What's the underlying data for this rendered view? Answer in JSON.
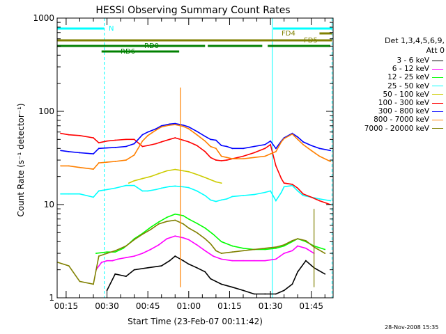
{
  "chart_data": {
    "type": "line",
    "title": "HESSI Observing Summary Count Rates",
    "xlabel": "Start Time (23-Feb-07 00:11:42)",
    "ylabel": "Count Rate (s⁻¹ detector⁻¹)",
    "yscale": "log",
    "ylim": [
      1,
      1000
    ],
    "xlim_minutes": [
      11.7,
      113
    ],
    "x_ticks": [
      "00:15",
      "00:30",
      "00:45",
      "01:00",
      "01:15",
      "01:30",
      "01:45"
    ],
    "y_ticks": [
      "1",
      "10",
      "100",
      "1000"
    ],
    "legend_header": [
      "Det 1,3,4,5,6,9,",
      "Att 0"
    ],
    "grid": false,
    "series": [
      {
        "name": "3 - 6 keV",
        "color": "#000000",
        "x": [
          30,
          33,
          37,
          40,
          45,
          50,
          53,
          55,
          58,
          60,
          63,
          66,
          68,
          72,
          76,
          80,
          84,
          88,
          92,
          95,
          98,
          100,
          103,
          106,
          110
        ],
        "y": [
          1.2,
          1.8,
          1.7,
          2.0,
          2.1,
          2.2,
          2.5,
          2.8,
          2.5,
          2.3,
          2.1,
          1.9,
          1.6,
          1.4,
          1.3,
          1.2,
          1.1,
          1.1,
          1.1,
          1.2,
          1.4,
          1.9,
          2.5,
          2.1,
          1.8
        ]
      },
      {
        "name": "6 - 12 keV",
        "color": "#ff00ff",
        "x": [
          26,
          28,
          30,
          32,
          34,
          37,
          40,
          43,
          46,
          49,
          52,
          55,
          58,
          60,
          63,
          66,
          69,
          72,
          76,
          80,
          84,
          88,
          92,
          95,
          98,
          100,
          103,
          106
        ],
        "y": [
          2.0,
          2.4,
          2.5,
          2.5,
          2.6,
          2.7,
          2.8,
          3.0,
          3.3,
          3.7,
          4.3,
          4.6,
          4.4,
          4.2,
          3.7,
          3.2,
          2.8,
          2.6,
          2.5,
          2.5,
          2.5,
          2.5,
          2.6,
          3.0,
          3.2,
          3.6,
          3.4,
          3.0
        ]
      },
      {
        "name": "12 - 25 keV",
        "color": "#00ff00",
        "x": [
          26,
          30,
          33,
          36,
          38,
          40,
          43,
          46,
          49,
          52,
          55,
          58,
          60,
          63,
          66,
          69,
          72,
          76,
          80,
          84,
          88,
          92,
          95,
          98,
          100,
          103,
          106,
          110
        ],
        "y": [
          3.0,
          3.1,
          3.1,
          3.4,
          3.8,
          4.3,
          4.9,
          5.7,
          6.5,
          7.3,
          7.9,
          7.6,
          7.0,
          6.3,
          5.6,
          4.8,
          4.0,
          3.6,
          3.4,
          3.3,
          3.3,
          3.4,
          3.6,
          4.0,
          4.3,
          4.0,
          3.6,
          3.3
        ]
      },
      {
        "name": "25 - 50 keV",
        "color": "#00ffff",
        "x": [
          13,
          16,
          20,
          25,
          27,
          30,
          33,
          37,
          40,
          43,
          45,
          48,
          50,
          53,
          55,
          58,
          60,
          63,
          66,
          68,
          70,
          72,
          74,
          76,
          80,
          84,
          88,
          90,
          92,
          94,
          95,
          98,
          100,
          102,
          105,
          108,
          112
        ],
        "y": [
          13,
          13,
          13,
          12,
          14,
          14.5,
          15,
          16,
          16,
          14,
          14,
          14.5,
          15,
          15.6,
          15.8,
          15.5,
          15.2,
          14,
          12.5,
          11.2,
          10.8,
          11.2,
          11.5,
          12.2,
          12.5,
          12.8,
          13.5,
          14,
          11,
          13.5,
          15.5,
          16,
          14,
          12.5,
          12,
          11.5,
          11
        ]
      },
      {
        "name": "50 - 100 keV",
        "color": "#cccc00",
        "x": [
          38,
          40,
          43,
          46,
          49,
          52,
          55,
          58,
          60,
          63,
          66,
          68,
          70,
          72
        ],
        "y": [
          17,
          18,
          19,
          20,
          21.5,
          23,
          23.8,
          23,
          22.5,
          21,
          19.5,
          18.5,
          17.5,
          17
        ]
      },
      {
        "name": "100 - 300 keV",
        "color": "#ff0000",
        "x": [
          13,
          16,
          20,
          25,
          27,
          30,
          33,
          37,
          40,
          43,
          45,
          48,
          50,
          53,
          55,
          58,
          60,
          63,
          66,
          68,
          70,
          72,
          74,
          76,
          80,
          84,
          88,
          90,
          92,
          94,
          95,
          98,
          100,
          102,
          105,
          108,
          112
        ],
        "y": [
          58,
          56,
          55,
          52,
          46,
          48,
          49,
          50,
          50,
          42,
          43,
          45,
          47,
          50,
          52,
          49,
          47,
          43,
          37,
          32,
          30,
          29.5,
          30,
          31,
          33,
          36,
          40,
          44,
          26,
          19,
          17,
          16.5,
          15,
          13,
          12,
          11,
          10
        ]
      },
      {
        "name": "300 - 800 keV",
        "color": "#0000ff",
        "x": [
          13,
          16,
          20,
          25,
          27,
          30,
          33,
          37,
          40,
          43,
          45,
          48,
          50,
          53,
          55,
          58,
          60,
          63,
          66,
          68,
          70,
          72,
          74,
          76,
          80,
          84,
          88,
          90,
          92,
          94,
          95,
          98,
          100,
          102,
          105,
          108,
          112
        ],
        "y": [
          38,
          37,
          36,
          35,
          40,
          40.5,
          41,
          42,
          45,
          56,
          60,
          65,
          70,
          73,
          74,
          71,
          68,
          61,
          54,
          50,
          49,
          43,
          42,
          40,
          40,
          42,
          44,
          48,
          40,
          48,
          52,
          58,
          53,
          47,
          43,
          40,
          38
        ]
      },
      {
        "name": "800 - 7000 keV",
        "color": "#ff8000",
        "x": [
          13,
          16,
          20,
          25,
          27,
          30,
          33,
          37,
          40,
          43,
          45,
          48,
          50,
          53,
          55,
          58,
          60,
          63,
          66,
          68,
          70,
          72,
          74,
          76,
          80,
          84,
          88,
          90,
          92,
          94,
          95,
          98,
          100,
          102,
          105,
          108,
          112
        ],
        "y": [
          26,
          26,
          25,
          24,
          28,
          28.5,
          29,
          30,
          34,
          48,
          55,
          63,
          68,
          71,
          72,
          69,
          65,
          56,
          48,
          42,
          40,
          33,
          32,
          31,
          31,
          32,
          33,
          35,
          37,
          47,
          51,
          57,
          50,
          44,
          38,
          33,
          29
        ]
      },
      {
        "name": "7000 - 20000 keV",
        "color": "#808000",
        "x": [
          12,
          16,
          20,
          25,
          27,
          30,
          33,
          37,
          40,
          43,
          46,
          49,
          52,
          55,
          58,
          60,
          63,
          66,
          68,
          70,
          72,
          76,
          80,
          84,
          88,
          92,
          95,
          98,
          100,
          103,
          106,
          110
        ],
        "y": [
          2.4,
          2.2,
          1.5,
          1.4,
          2.8,
          3.0,
          3.2,
          3.6,
          4.2,
          4.8,
          5.4,
          6.2,
          6.6,
          6.8,
          6.2,
          5.6,
          5.0,
          4.3,
          3.8,
          3.2,
          3.0,
          3.1,
          3.2,
          3.3,
          3.4,
          3.5,
          3.7,
          4.1,
          4.3,
          4.1,
          3.5,
          3.0
        ]
      }
    ],
    "state_bars": [
      {
        "label": "N",
        "color": "#00ffff",
        "segments": [
          [
            11.7,
            29
          ],
          [
            91,
            112.6
          ]
        ]
      },
      {
        "label": "FD4",
        "color": "#808000",
        "segments": [
          [
            108,
            112.6
          ]
        ]
      },
      {
        "label": "FD5",
        "color": "#808000",
        "segments": [
          [
            11.7,
            112.6
          ]
        ]
      },
      {
        "label": "RD0",
        "color": "#008000",
        "segments": [
          [
            11.7,
            66
          ],
          [
            67,
            87
          ],
          [
            89,
            112
          ]
        ]
      },
      {
        "label": "RD6",
        "color": "#008000",
        "segments": [
          [
            28,
            56.5
          ]
        ]
      }
    ],
    "vertical_markers": [
      {
        "color": "#00ffff",
        "style": "dashed",
        "x": 29
      },
      {
        "color": "#00ffff",
        "style": "dashed",
        "x": 112.6
      },
      {
        "color": "#00ffff",
        "style": "solid",
        "x": 90.7
      }
    ],
    "spikes": [
      {
        "series": "800 - 7000 keV",
        "x": 57,
        "y": 180
      },
      {
        "series": "7000 - 20000 keV",
        "x": 106,
        "y": 9
      }
    ]
  },
  "timestamp": "28-Nov-2008 15:35"
}
